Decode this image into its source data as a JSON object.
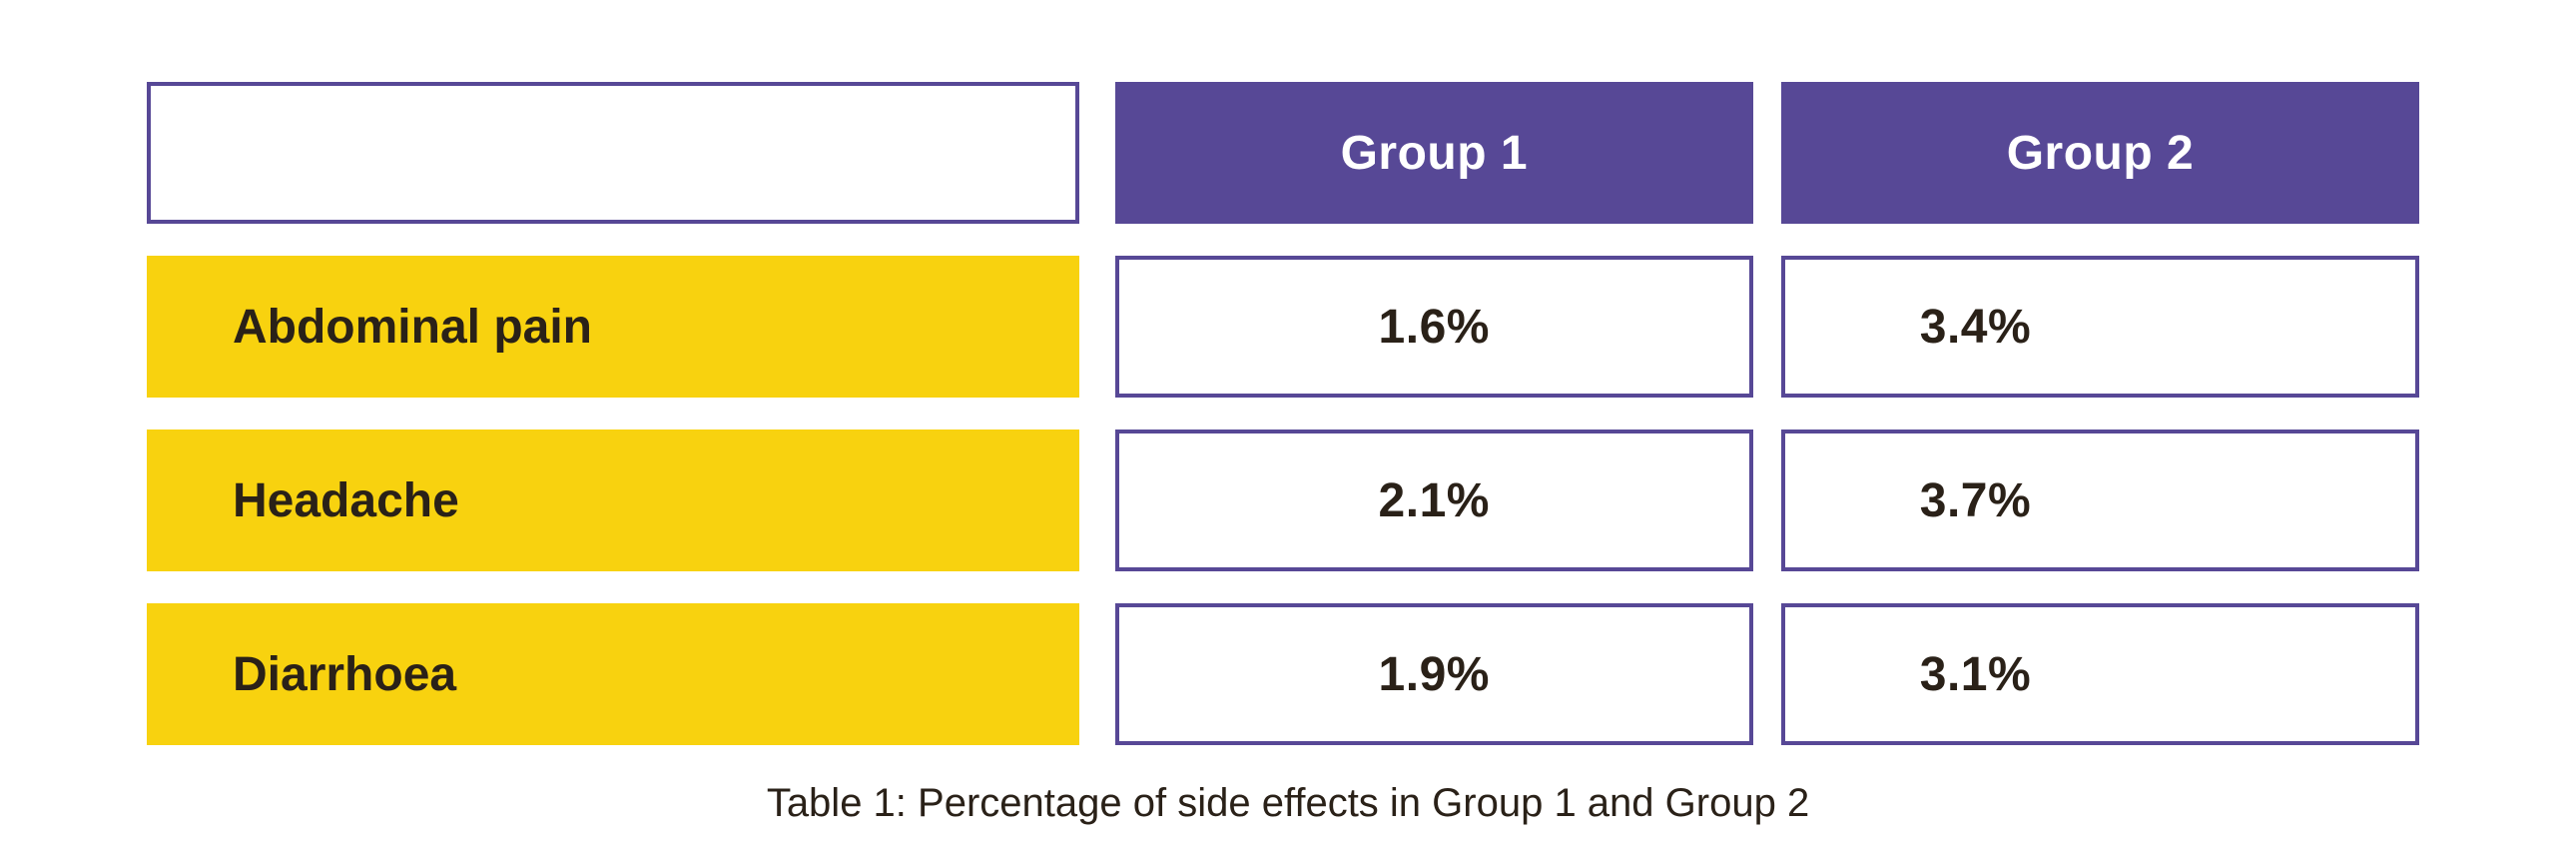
{
  "chart_data": {
    "type": "table",
    "columns": [
      "",
      "Group 1",
      "Group 2"
    ],
    "rows": [
      {
        "label": "Abdominal pain",
        "group1": "1.6%",
        "group2": "3.4%"
      },
      {
        "label": "Headache",
        "group1": "2.1%",
        "group2": "3.7%"
      },
      {
        "label": "Diarrhoea",
        "group1": "1.9%",
        "group2": "3.1%"
      }
    ],
    "series": [
      {
        "name": "Group 1",
        "values": [
          1.6,
          2.1,
          1.9
        ]
      },
      {
        "name": "Group 2",
        "values": [
          3.4,
          3.7,
          3.1
        ]
      }
    ],
    "categories": [
      "Abdominal pain",
      "Headache",
      "Diarrhoea"
    ],
    "caption": "Table 1: Percentage of side effects in Group 1 and Group 2"
  },
  "colors": {
    "header_fill": "#574896",
    "row_label_fill": "#f8d20f",
    "border": "#574896",
    "text": "#2a2118"
  }
}
